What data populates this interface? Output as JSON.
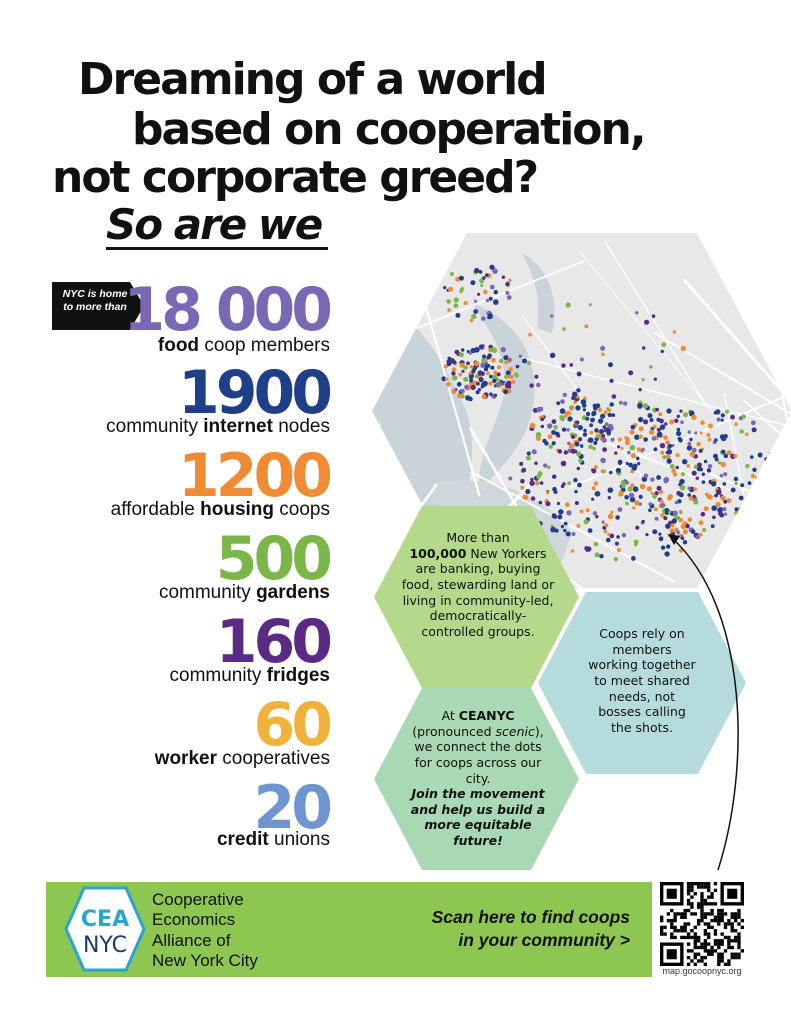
{
  "headline": {
    "line1": "Dreaming of a world",
    "line2": "based on cooperation,",
    "line3": "not corporate greed?",
    "line4": "So are we"
  },
  "badge": {
    "line1": "NYC is home",
    "line2": "to more than"
  },
  "stats": [
    {
      "number": "18 000",
      "bold": "food",
      "rest": " coop members",
      "color": "#7b68b5",
      "order": "bold-first"
    },
    {
      "number": "1900",
      "pre": "community ",
      "bold": "internet",
      "rest": " nodes",
      "color": "#1f3f8a",
      "order": "mid"
    },
    {
      "number": "1200",
      "pre": "affordable ",
      "bold": "housing",
      "rest": " coops",
      "color": "#ef8b35",
      "order": "mid"
    },
    {
      "number": "500",
      "pre": "community ",
      "bold": "gardens",
      "rest": "",
      "color": "#7ab648",
      "order": "mid"
    },
    {
      "number": "160",
      "pre": "community ",
      "bold": "fridges",
      "rest": "",
      "color": "#5b2a82",
      "order": "mid"
    },
    {
      "number": "60",
      "bold": "worker",
      "rest": " cooperatives",
      "color": "#f1b23b",
      "order": "bold-first"
    },
    {
      "number": "20",
      "bold": "credit",
      "rest": " unions",
      "color": "#6e95cf",
      "order": "bold-first"
    }
  ],
  "hex_green": {
    "t1": "More than",
    "t2": "100,000",
    "t3": " New Yorkers are banking, buying food, stewarding land or living in community-led, democratically-controlled groups."
  },
  "hex_blue": "Coops rely on members working together to meet shared needs, not bosses calling the shots.",
  "hex_teal": {
    "t1": "At ",
    "t2": "CEANYC",
    "t3": " (pronounced ",
    "t4": "scenic",
    "t5": "), we connect the dots for coops across our city.",
    "t6": "Join the movement and help us build a more equitable future!"
  },
  "footer": {
    "logo_top": "CEA",
    "logo_bottom": "NYC",
    "org_line1": "Cooperative",
    "org_line2": "Economics",
    "org_line3": "Alliance of",
    "org_line4": "New York City",
    "scan_line1": "Scan here to find coops",
    "scan_line2": "in your community >",
    "url": "map.gocoopnyc.org"
  },
  "colors": {
    "purple_light": "#7b68b5",
    "navy": "#1f3f8a",
    "orange": "#ef8b35",
    "green": "#7ab648",
    "purple_dark": "#5b2a82",
    "yellow": "#f1b23b",
    "blue_light": "#6e95cf",
    "band_green": "#8dc651",
    "hex_green": "#b5d98b",
    "hex_blue": "#b5dbdc",
    "hex_teal": "#a9d8b5",
    "logo_blue": "#2aa3d6"
  }
}
